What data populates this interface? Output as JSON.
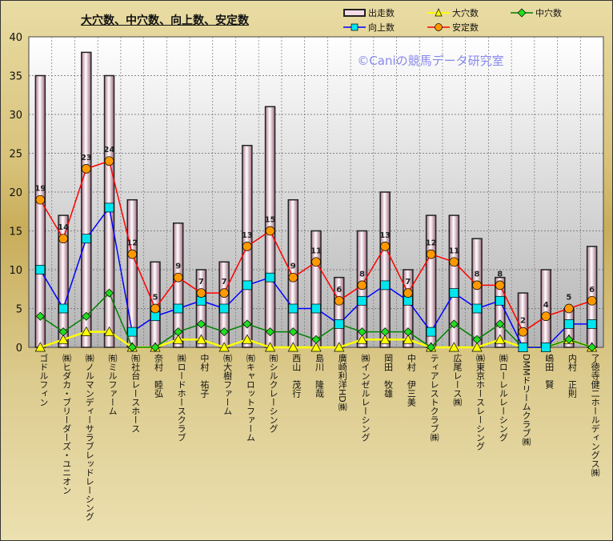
{
  "chart_data": {
    "type": "bar",
    "title": "大穴数、中穴数、向上数、安定数",
    "watermark": "©Caniの競馬データ研究室",
    "ylim": [
      0,
      40
    ],
    "yticks": [
      0,
      5,
      10,
      15,
      20,
      25,
      30,
      35,
      40
    ],
    "grid": true,
    "legend_position": "top-right",
    "categories": [
      "ゴドルフィン",
      "㈱ヒダカ・ブリーダーズ・ユニオン",
      "㈱ノルマンディーサラブレッドレーシング",
      "㈲ミルファーム",
      "㈲社台レースホース",
      "奈村　睦弘",
      "㈱ロードホースクラブ",
      "中村　祐子",
      "㈲大樹ファーム",
      "㈲キャロットファーム",
      "㈲シルクレーシング",
      "西山　茂行",
      "島川　隆哉",
      "廣崎利洋HD㈱",
      "㈱インゼルレーシング",
      "岡田　牧雄",
      "中村　伊三美",
      "ティアレストクラブ㈱",
      "広尾レース㈱",
      "㈱東京ホースレーシング",
      "㈱ローレルレーシング",
      "DMMドリームクラブ㈱",
      "嶋田　賢",
      "内村　正則",
      "了徳寺健二ホールディングス㈱"
    ],
    "series": [
      {
        "name": "出走数",
        "kind": "bar",
        "color": "#f4dde6",
        "values": [
          35,
          17,
          38,
          35,
          19,
          11,
          16,
          10,
          11,
          26,
          31,
          19,
          15,
          9,
          15,
          20,
          10,
          17,
          17,
          14,
          9,
          7,
          10,
          5,
          13
        ]
      },
      {
        "name": "大穴数",
        "kind": "line",
        "color": "#ffff00",
        "marker": "triangle",
        "values": [
          0,
          1,
          2,
          2,
          0,
          0,
          1,
          1,
          0,
          1,
          0,
          0,
          0,
          0,
          1,
          1,
          1,
          0,
          0,
          0,
          1,
          0,
          0,
          1,
          0
        ]
      },
      {
        "name": "中穴数",
        "kind": "line",
        "color": "#008000",
        "marker": "diamond",
        "markerColor": "#22dd22",
        "values": [
          4,
          2,
          4,
          7,
          0,
          0,
          2,
          3,
          2,
          3,
          2,
          2,
          1,
          3,
          2,
          2,
          2,
          0,
          3,
          1,
          3,
          0,
          0,
          1,
          0
        ]
      },
      {
        "name": "向上数",
        "kind": "line",
        "color": "#0000ff",
        "marker": "square",
        "markerColor": "#00e5ee",
        "values": [
          10,
          5,
          14,
          18,
          2,
          4,
          5,
          6,
          5,
          8,
          9,
          5,
          5,
          3,
          6,
          8,
          6,
          2,
          7,
          5,
          6,
          0,
          0,
          3,
          3
        ]
      },
      {
        "name": "安定数",
        "kind": "line",
        "color": "#ff0000",
        "marker": "circle",
        "markerColor": "#ff9900",
        "labels": true,
        "values": [
          19,
          14,
          23,
          24,
          12,
          5,
          9,
          7,
          7,
          13,
          15,
          9,
          11,
          6,
          8,
          13,
          7,
          12,
          11,
          8,
          8,
          2,
          4,
          5,
          6
        ]
      }
    ]
  }
}
